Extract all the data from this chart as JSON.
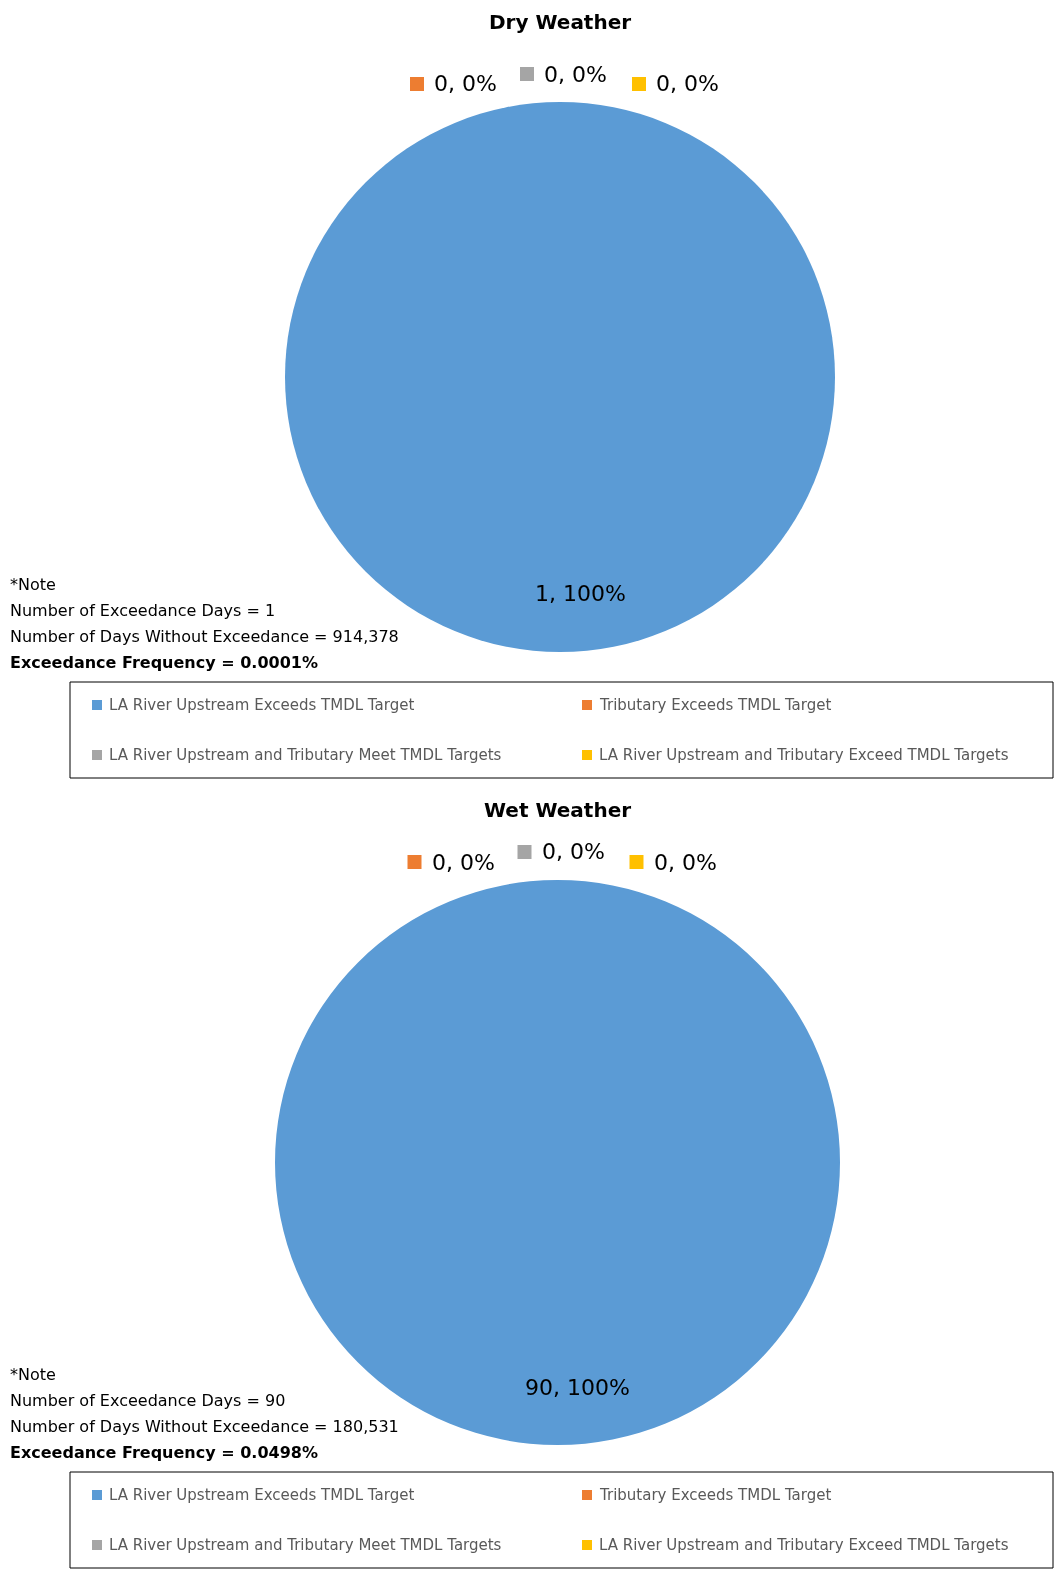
{
  "chart_data": [
    {
      "type": "pie",
      "title": "Dry Weather",
      "categories": [
        "LA River Upstream Exceeds TMDL Target",
        "Tributary Exceeds TMDL Target",
        "LA River Upstream and Tributary Meet TMDL Targets",
        "LA River Upstream and Tributary Exceed TMDL Targets"
      ],
      "values": [
        1,
        0,
        0,
        0
      ],
      "colors": [
        "#5b9bd5",
        "#ed7d31",
        "#a5a5a5",
        "#ffc000"
      ],
      "value_labels": [
        "1, 100%",
        "0, 0%",
        "0, 0%",
        "0, 0%"
      ],
      "legend": "bottom",
      "annotations": [
        "*Note",
        "Number of Exceedance Days = 1",
        "Number of Days Without Exceedance = 914,378",
        "Exceedance Frequency = 0.0001%"
      ]
    },
    {
      "type": "pie",
      "title": "Wet Weather",
      "categories": [
        "LA River Upstream Exceeds TMDL Target",
        "Tributary Exceeds TMDL Target",
        "LA River Upstream and Tributary Meet TMDL Targets",
        "LA River Upstream and Tributary Exceed TMDL Targets"
      ],
      "values": [
        90,
        0,
        0,
        0
      ],
      "colors": [
        "#5b9bd5",
        "#ed7d31",
        "#a5a5a5",
        "#ffc000"
      ],
      "value_labels": [
        "90, 100%",
        "0, 0%",
        "0, 0%",
        "0, 0%"
      ],
      "legend": "bottom",
      "annotations": [
        "*Note",
        "Number of Exceedance Days = 90",
        "Number of Days Without Exceedance = 180,531",
        "Exceedance Frequency = 0.0498%"
      ]
    }
  ]
}
